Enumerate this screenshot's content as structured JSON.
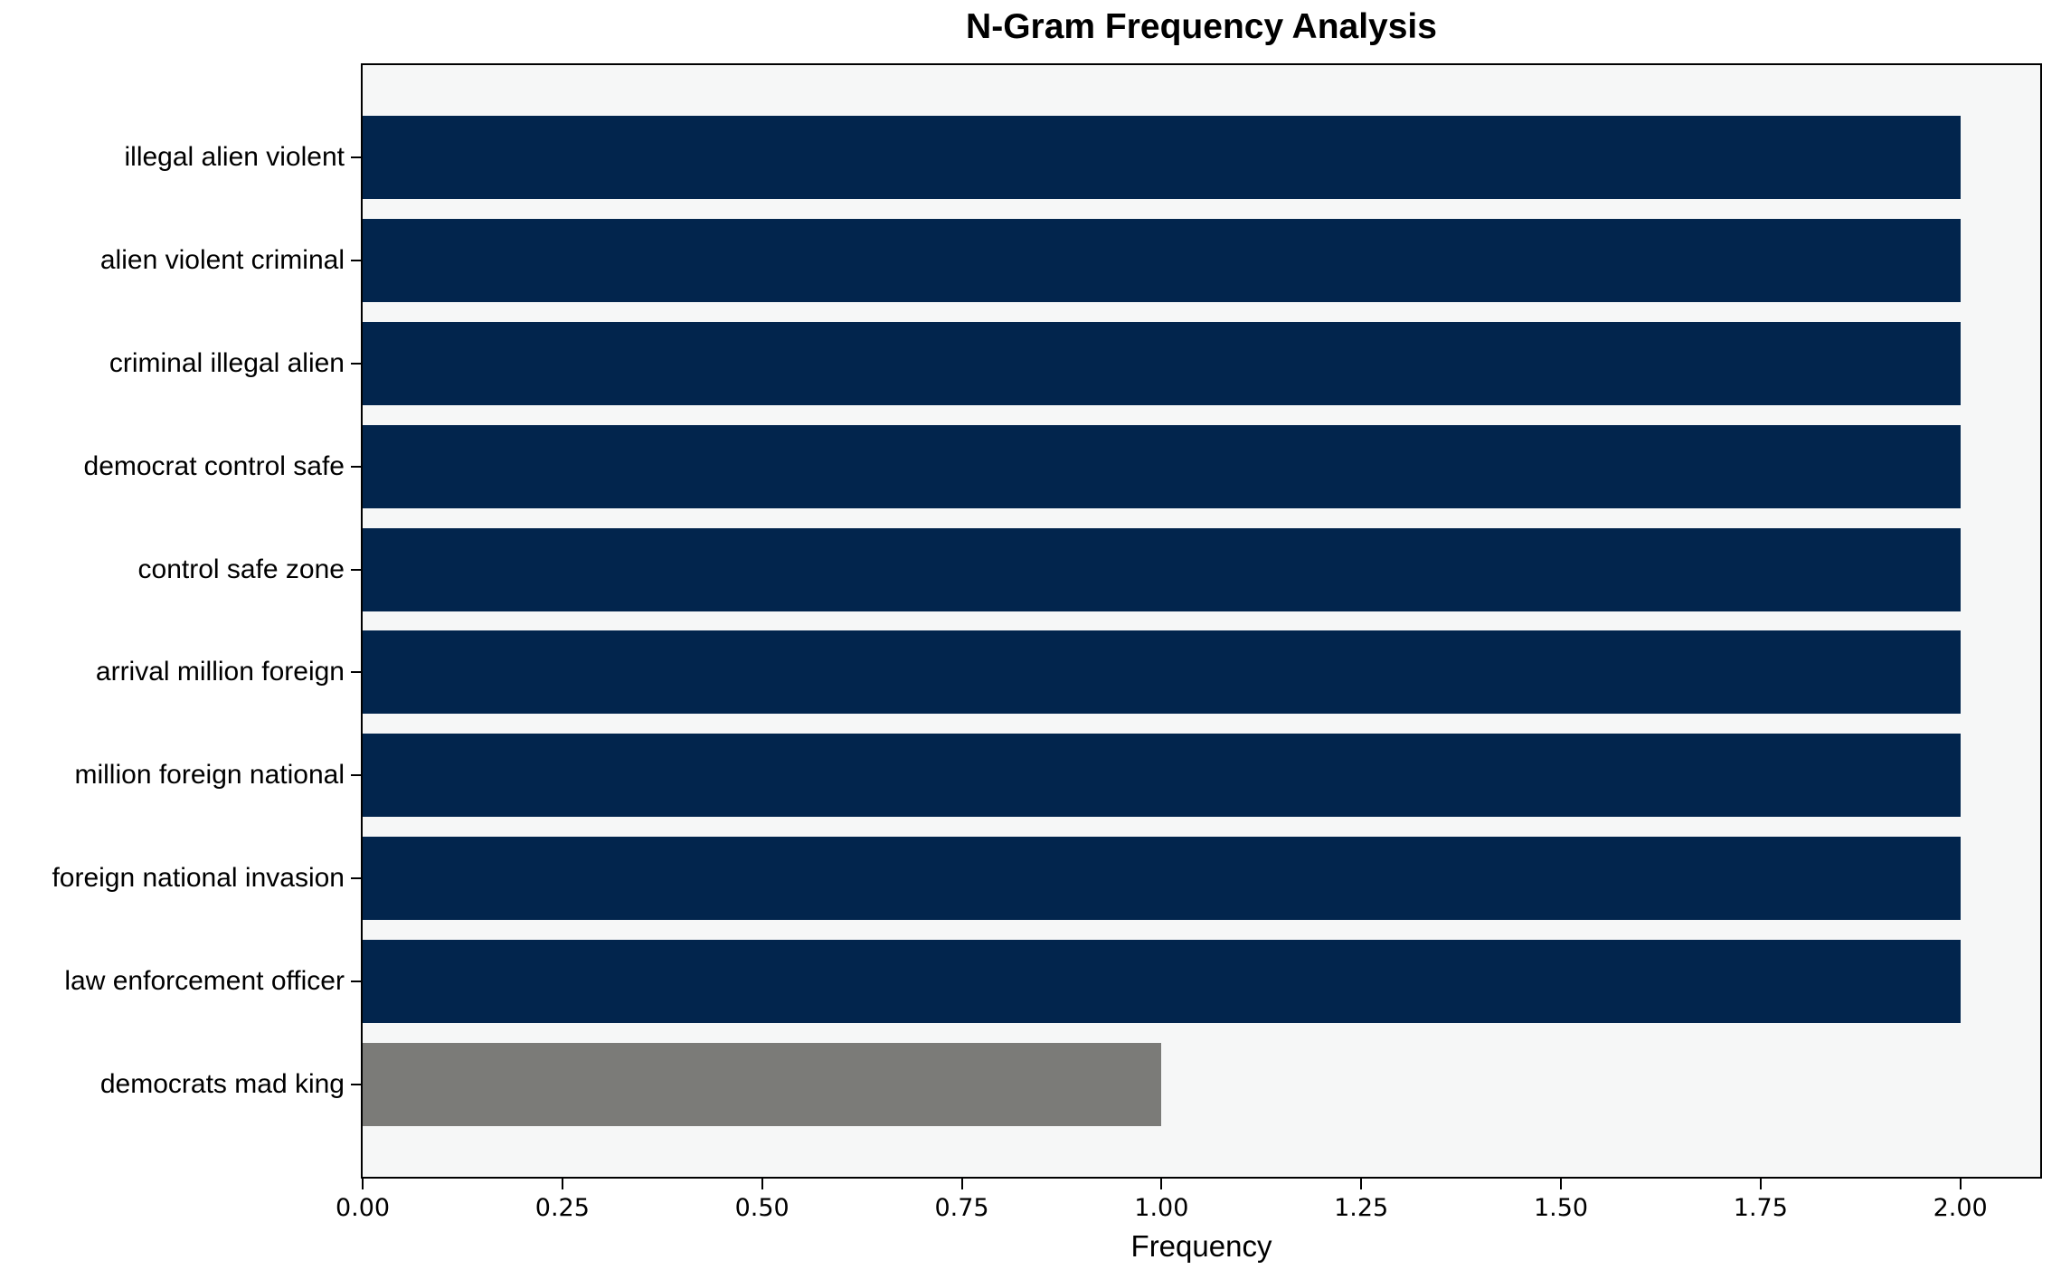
{
  "chart_data": {
    "type": "bar",
    "orientation": "horizontal",
    "title": "N-Gram Frequency Analysis",
    "xlabel": "Frequency",
    "ylabel": "",
    "categories": [
      "illegal alien violent",
      "alien violent criminal",
      "criminal illegal alien",
      "democrat control safe",
      "control safe zone",
      "arrival million foreign",
      "million foreign national",
      "foreign national invasion",
      "law enforcement officer",
      "democrats mad king"
    ],
    "values": [
      2,
      2,
      2,
      2,
      2,
      2,
      2,
      2,
      2,
      1
    ],
    "bar_colors": [
      "#02254d",
      "#02254d",
      "#02254d",
      "#02254d",
      "#02254d",
      "#02254d",
      "#02254d",
      "#02254d",
      "#02254d",
      "#7b7b78"
    ],
    "xlim": [
      0,
      2.1
    ],
    "x_ticks": [
      0,
      0.25,
      0.5,
      0.75,
      1.0,
      1.25,
      1.5,
      1.75,
      2.0
    ],
    "x_tick_labels": [
      "0.00",
      "0.25",
      "0.50",
      "0.75",
      "1.00",
      "1.25",
      "1.50",
      "1.75",
      "2.00"
    ],
    "grid": false,
    "legend": null
  },
  "colors": {
    "bar_primary": "#02254d",
    "bar_secondary": "#7b7b78",
    "plot_background": "#f6f7f7",
    "figure_background": "#ffffff",
    "axis": "#000000",
    "text": "#000000"
  }
}
